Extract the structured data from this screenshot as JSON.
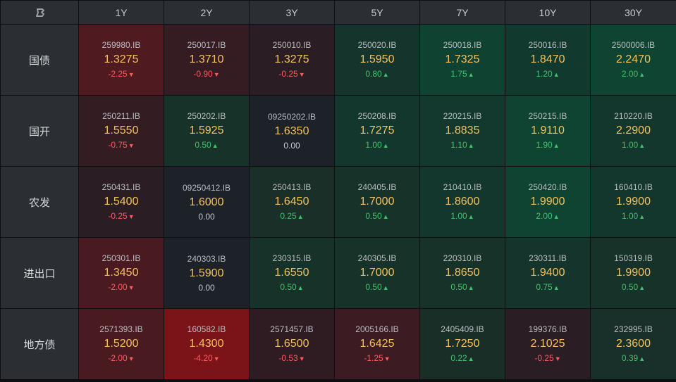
{
  "corner_icon": "logo-icon",
  "tenors": [
    "1Y",
    "2Y",
    "3Y",
    "5Y",
    "7Y",
    "10Y",
    "30Y"
  ],
  "rows": [
    {
      "label": "国债",
      "cells": [
        {
          "code": "259980.IB",
          "yield": "1.3275",
          "change": "-2.25",
          "dir": "down",
          "bg": "#4f1a20"
        },
        {
          "code": "250017.IB",
          "yield": "1.3710",
          "change": "-0.90",
          "dir": "down",
          "bg": "#341c22"
        },
        {
          "code": "250010.IB",
          "yield": "1.3275",
          "change": "-0.25",
          "dir": "down",
          "bg": "#2b1d24"
        },
        {
          "code": "250020.IB",
          "yield": "1.5950",
          "change": "0.80",
          "dir": "up",
          "bg": "#15352c"
        },
        {
          "code": "250018.IB",
          "yield": "1.7325",
          "change": "1.75",
          "dir": "up",
          "bg": "#0f4230"
        },
        {
          "code": "250016.IB",
          "yield": "1.8470",
          "change": "1.20",
          "dir": "up",
          "bg": "#12392e"
        },
        {
          "code": "2500006.IB",
          "yield": "2.2470",
          "change": "2.00",
          "dir": "up",
          "bg": "#0e4431"
        }
      ]
    },
    {
      "label": "国开",
      "cells": [
        {
          "code": "250211.IB",
          "yield": "1.5550",
          "change": "-0.75",
          "dir": "down",
          "bg": "#331c22"
        },
        {
          "code": "250202.IB",
          "yield": "1.5925",
          "change": "0.50",
          "dir": "up",
          "bg": "#173229"
        },
        {
          "code": "09250202.IB",
          "yield": "1.6350",
          "change": "0.00",
          "dir": "flat",
          "bg": "#1c2228"
        },
        {
          "code": "250208.IB",
          "yield": "1.7275",
          "change": "1.00",
          "dir": "up",
          "bg": "#13372d"
        },
        {
          "code": "220215.IB",
          "yield": "1.8835",
          "change": "1.10",
          "dir": "up",
          "bg": "#13382d"
        },
        {
          "code": "250215.IB",
          "yield": "1.9110",
          "change": "1.90",
          "dir": "up",
          "bg": "#0e4431"
        },
        {
          "code": "210220.IB",
          "yield": "2.2900",
          "change": "1.00",
          "dir": "up",
          "bg": "#13372d"
        }
      ]
    },
    {
      "label": "农发",
      "cells": [
        {
          "code": "250431.IB",
          "yield": "1.5400",
          "change": "-0.25",
          "dir": "down",
          "bg": "#2b1d24"
        },
        {
          "code": "09250412.IB",
          "yield": "1.6000",
          "change": "0.00",
          "dir": "flat",
          "bg": "#1c2228"
        },
        {
          "code": "250413.IB",
          "yield": "1.6450",
          "change": "0.25",
          "dir": "up",
          "bg": "#192f28"
        },
        {
          "code": "240405.IB",
          "yield": "1.7000",
          "change": "0.50",
          "dir": "up",
          "bg": "#173229"
        },
        {
          "code": "210410.IB",
          "yield": "1.8600",
          "change": "1.00",
          "dir": "up",
          "bg": "#13372d"
        },
        {
          "code": "250420.IB",
          "yield": "1.9900",
          "change": "2.00",
          "dir": "up",
          "bg": "#0e4431"
        },
        {
          "code": "160410.IB",
          "yield": "1.9900",
          "change": "1.00",
          "dir": "up",
          "bg": "#13372d"
        }
      ]
    },
    {
      "label": "进出口",
      "cells": [
        {
          "code": "250301.IB",
          "yield": "1.3450",
          "change": "-2.00",
          "dir": "down",
          "bg": "#4a1a21"
        },
        {
          "code": "240303.IB",
          "yield": "1.5900",
          "change": "0.00",
          "dir": "flat",
          "bg": "#1c2228"
        },
        {
          "code": "230315.IB",
          "yield": "1.6550",
          "change": "0.50",
          "dir": "up",
          "bg": "#173229"
        },
        {
          "code": "240305.IB",
          "yield": "1.7000",
          "change": "0.50",
          "dir": "up",
          "bg": "#173229"
        },
        {
          "code": "220310.IB",
          "yield": "1.8650",
          "change": "0.50",
          "dir": "up",
          "bg": "#173229"
        },
        {
          "code": "230311.IB",
          "yield": "1.9400",
          "change": "0.75",
          "dir": "up",
          "bg": "#15352c"
        },
        {
          "code": "150319.IB",
          "yield": "1.9900",
          "change": "0.50",
          "dir": "up",
          "bg": "#173229"
        }
      ]
    },
    {
      "label": "地方债",
      "cells": [
        {
          "code": "2571393.IB",
          "yield": "1.5200",
          "change": "-2.00",
          "dir": "down",
          "bg": "#4a1a21"
        },
        {
          "code": "160582.IB",
          "yield": "1.4300",
          "change": "-4.20",
          "dir": "down",
          "bg": "#7a1419"
        },
        {
          "code": "2571457.IB",
          "yield": "1.6500",
          "change": "-0.53",
          "dir": "down",
          "bg": "#2f1c23"
        },
        {
          "code": "2005166.IB",
          "yield": "1.6425",
          "change": "-1.25",
          "dir": "down",
          "bg": "#3c1b22"
        },
        {
          "code": "2405409.IB",
          "yield": "1.7250",
          "change": "0.22",
          "dir": "up",
          "bg": "#1a2e28"
        },
        {
          "code": "199376.IB",
          "yield": "2.1025",
          "change": "-0.25",
          "dir": "down",
          "bg": "#2b1d24"
        },
        {
          "code": "232995.IB",
          "yield": "2.3600",
          "change": "0.39",
          "dir": "up",
          "bg": "#183029"
        }
      ]
    }
  ]
}
